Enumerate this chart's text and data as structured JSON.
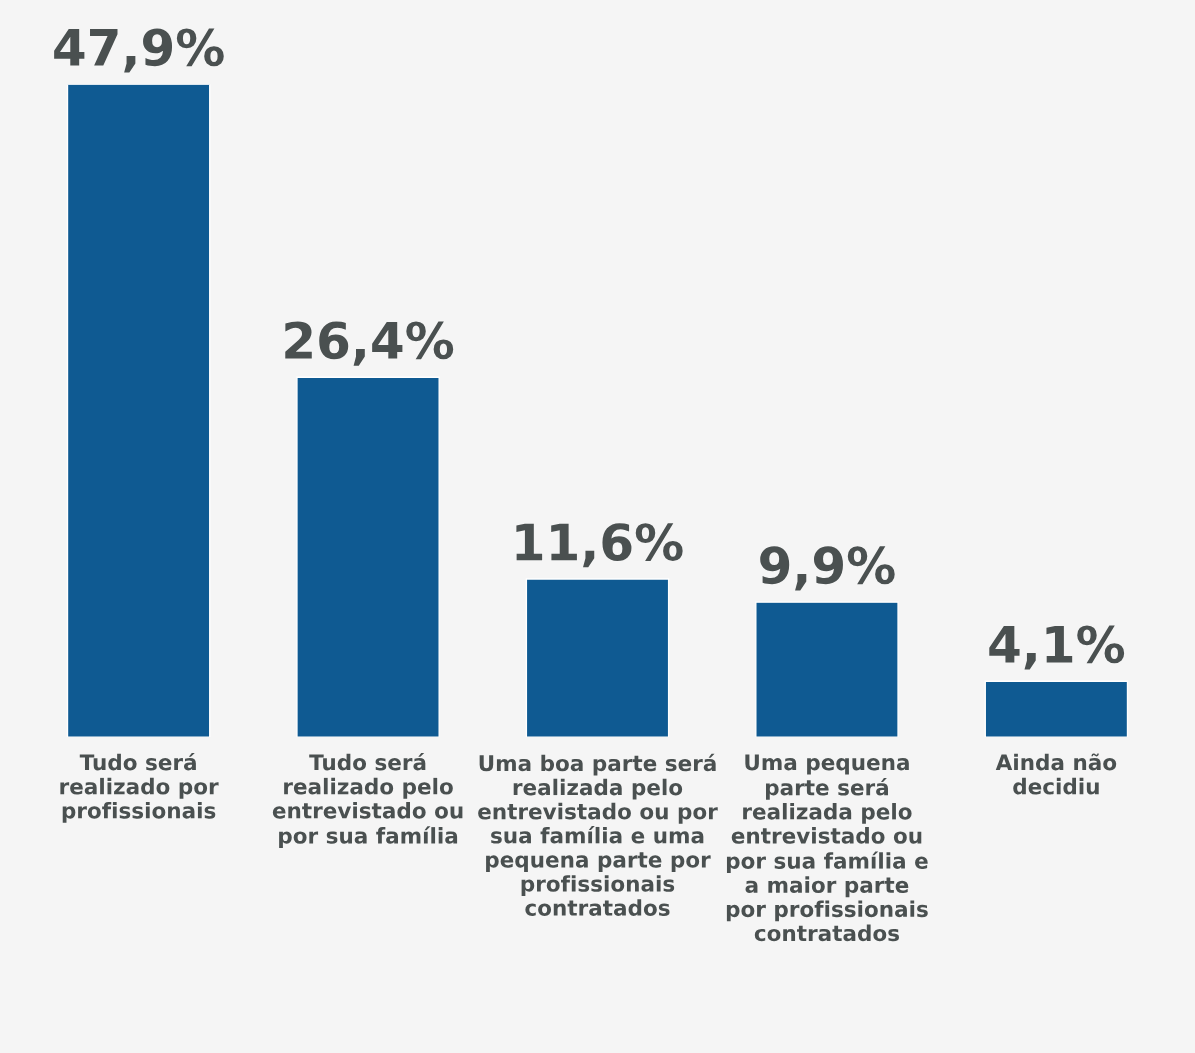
{
  "chart_data": {
    "type": "bar",
    "categories": [
      "Tudo será\nrealizado por\nprofissionais",
      "Tudo será\nrealizado pelo\nentrevistado ou\npor sua família",
      "Uma boa parte será\nrealizada pelo\nentrevistado ou por\nsua família e uma\npequena parte por\nprofissionais\ncontratados",
      "Uma pequena\nparte será\nrealizada pelo\nentrevistado ou\npor sua família e\na maior parte\npor profissionais\ncontratados",
      "Ainda não\ndecidiu"
    ],
    "values": [
      47.9,
      26.4,
      11.6,
      9.9,
      4.1
    ],
    "value_labels": [
      "47,9%",
      "26,4%",
      "11,6%",
      "9,9%",
      "4,1%"
    ],
    "color": "#0f5a92"
  }
}
